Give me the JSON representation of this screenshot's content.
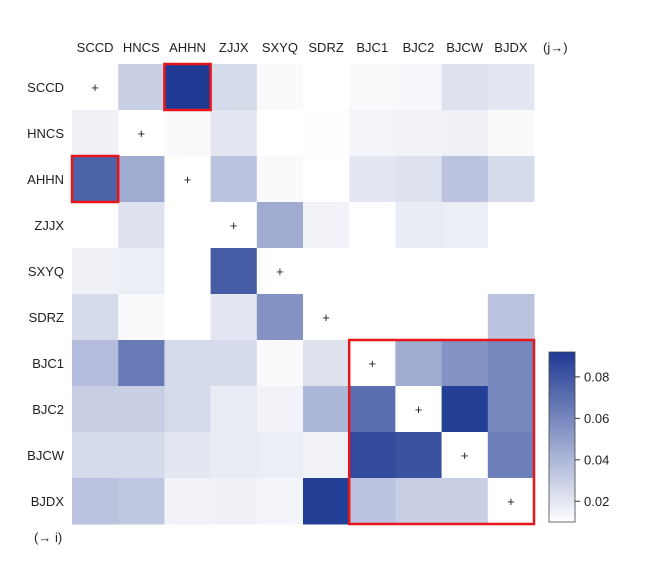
{
  "chart_data": {
    "type": "heatmap",
    "column_axis_label": "(j→)",
    "row_axis_label": "(→ i)",
    "columns": [
      "SCCD",
      "HNCS",
      "AHHN",
      "ZJJX",
      "SXYQ",
      "SDRZ",
      "BJC1",
      "BJC2",
      "BJCW",
      "BJDX"
    ],
    "rows": [
      "SCCD",
      "HNCS",
      "AHHN",
      "ZJJX",
      "SXYQ",
      "SDRZ",
      "BJC1",
      "BJC2",
      "BJCW",
      "BJDX"
    ],
    "diagonal_marker": "+",
    "values": [
      [
        null,
        0.03,
        0.092,
        0.025,
        0.012,
        0.01,
        0.012,
        0.013,
        0.022,
        0.02
      ],
      [
        0.016,
        null,
        0.012,
        0.02,
        0.01,
        0.011,
        0.014,
        0.015,
        0.016,
        0.012
      ],
      [
        0.075,
        0.045,
        null,
        0.035,
        0.012,
        0.01,
        0.02,
        0.022,
        0.035,
        0.025
      ],
      [
        0.01,
        0.022,
        0.008,
        null,
        0.045,
        0.015,
        0.006,
        0.018,
        0.017,
        0.01
      ],
      [
        0.016,
        0.017,
        0.008,
        0.078,
        null,
        0.01,
        0.005,
        0.005,
        0.005,
        0.006
      ],
      [
        0.025,
        0.012,
        0.008,
        0.02,
        0.055,
        null,
        0.007,
        0.007,
        0.01,
        0.035
      ],
      [
        0.038,
        0.065,
        0.025,
        0.025,
        0.012,
        0.022,
        null,
        0.045,
        0.055,
        0.06
      ],
      [
        0.03,
        0.03,
        0.025,
        0.018,
        0.015,
        0.04,
        0.07,
        null,
        0.09,
        0.06
      ],
      [
        0.025,
        0.025,
        0.02,
        0.018,
        0.017,
        0.015,
        0.085,
        0.082,
        null,
        0.063
      ],
      [
        0.035,
        0.033,
        0.015,
        0.016,
        0.014,
        0.09,
        0.035,
        0.03,
        0.03,
        null
      ]
    ],
    "highlights": [
      {
        "row": 0,
        "col": 2,
        "rows": 1,
        "cols": 1
      },
      {
        "row": 2,
        "col": 0,
        "rows": 1,
        "cols": 1
      },
      {
        "row": 6,
        "col": 6,
        "rows": 4,
        "cols": 4
      }
    ],
    "highlight_color": "#e8161b",
    "colorbar": {
      "range": [
        0.01,
        0.092
      ],
      "ticks": [
        0.02,
        0.04,
        0.06,
        0.08
      ],
      "tick_labels": [
        "0.02",
        "0.04",
        "0.06",
        "0.08"
      ],
      "colormap": [
        "#ffffff",
        "#1f3a93"
      ]
    }
  }
}
